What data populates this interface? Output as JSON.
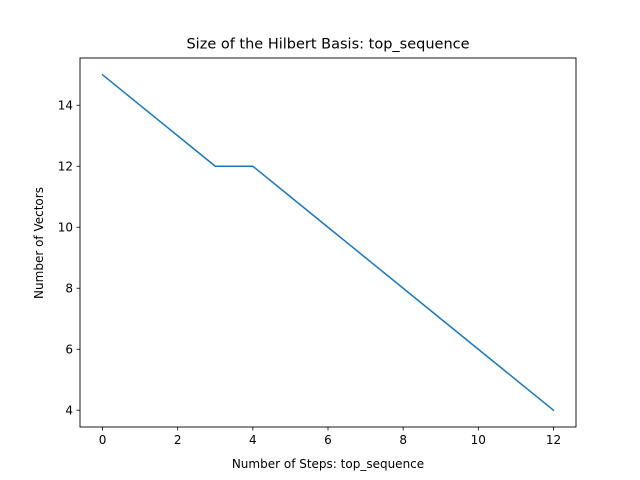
{
  "chart_data": {
    "type": "line",
    "title": "Size of the Hilbert Basis: top_sequence",
    "xlabel": "Number of Steps: top_sequence",
    "ylabel": "Number of Vectors",
    "xlim": [
      -0.6,
      12.6
    ],
    "ylim": [
      3.45,
      15.55
    ],
    "xticks": [
      0,
      2,
      4,
      6,
      8,
      10,
      12
    ],
    "yticks": [
      4,
      6,
      8,
      10,
      12,
      14
    ],
    "grid": false,
    "legend": "none",
    "series": [
      {
        "color": "#1f77b4",
        "x": [
          0,
          1,
          2,
          3,
          4,
          5,
          6,
          7,
          8,
          9,
          10,
          11,
          12
        ],
        "y": [
          15,
          14,
          13,
          12,
          12,
          11,
          10,
          9,
          8,
          7,
          6,
          5,
          4
        ]
      }
    ]
  }
}
